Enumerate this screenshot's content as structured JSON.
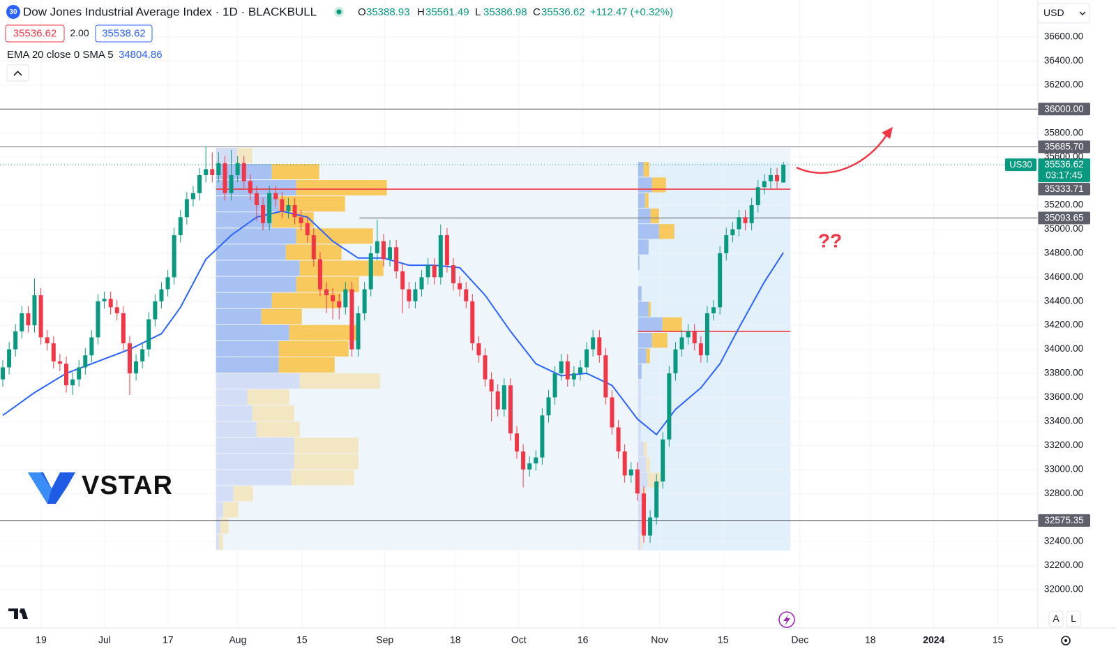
{
  "chart_data": {
    "type": "candlestick",
    "title": "Dow Jones Industrial Average Index · 1D · BLACKBULL",
    "symbol_badge": "30",
    "ohlc_letters": [
      "O",
      "H",
      "L",
      "C"
    ],
    "change": "+112.47 (+0.32%)",
    "spread": "2.00",
    "ask": 35538.62,
    "currency": "USD",
    "scale_buttons": [
      "A",
      "L"
    ],
    "logo": "VSTAR",
    "annotation": "??",
    "up_color": "#089981",
    "down_color": "#f23645",
    "xlim": [
      -0.44,
      163.1
    ],
    "ylim": [
      31680,
      36908
    ],
    "xticks": [
      {
        "value": 6.04,
        "label": "19"
      },
      {
        "value": 16.04,
        "label": "Jul"
      },
      {
        "value": 26.04,
        "label": "17"
      },
      {
        "value": 37.03,
        "label": "Aug"
      },
      {
        "value": 47.14,
        "label": "15"
      },
      {
        "value": 60.2,
        "label": "Sep"
      },
      {
        "value": 71.3,
        "label": "18"
      },
      {
        "value": 81.3,
        "label": "Oct"
      },
      {
        "value": 91.4,
        "label": "16"
      },
      {
        "value": 103.5,
        "label": "Nov"
      },
      {
        "value": 113.5,
        "label": "15"
      },
      {
        "value": 125.6,
        "label": "Dec"
      },
      {
        "value": 136.7,
        "label": "18"
      },
      {
        "value": 146.7,
        "label": "2024",
        "bold": true
      },
      {
        "value": 156.8,
        "label": "15"
      }
    ],
    "yticks": [
      {
        "value": 36600,
        "label": "36600.00"
      },
      {
        "value": 36400,
        "label": "36400.00"
      },
      {
        "value": 36200,
        "label": "36200.00"
      },
      {
        "value": 35800,
        "label": "35800.00"
      },
      {
        "value": 35600,
        "label": "35600.00"
      },
      {
        "value": 35200,
        "label": "35200.00"
      },
      {
        "value": 35000,
        "label": "35000.00"
      },
      {
        "value": 34800,
        "label": "34800.00"
      },
      {
        "value": 34600,
        "label": "34600.00"
      },
      {
        "value": 34400,
        "label": "34400.00"
      },
      {
        "value": 34200,
        "label": "34200.00"
      },
      {
        "value": 34000,
        "label": "34000.00"
      },
      {
        "value": 33800,
        "label": "33800.00"
      },
      {
        "value": 33600,
        "label": "33600.00"
      },
      {
        "value": 33400,
        "label": "33400.00"
      },
      {
        "value": 33200,
        "label": "33200.00"
      },
      {
        "value": 33000,
        "label": "33000.00"
      },
      {
        "value": 32800,
        "label": "32800.00"
      },
      {
        "value": 32400,
        "label": "32400.00"
      },
      {
        "value": 32200,
        "label": "32200.00"
      },
      {
        "value": 32000,
        "label": "32000.00"
      }
    ],
    "grid": true,
    "open": [
      33750,
      33850,
      34000,
      34150,
      34300,
      34200,
      34450,
      34100,
      34050,
      33900,
      33880,
      33700,
      33750,
      33850,
      33950,
      34100,
      34400,
      34420,
      34350,
      34300,
      34050,
      33800,
      33900,
      34000,
      34250,
      34400,
      34500,
      34600,
      34950,
      35100,
      35250,
      35300,
      35450,
      35500,
      35450,
      35550,
      35300,
      35450,
      35550,
      35400,
      35300,
      35200,
      35050,
      35300,
      35250,
      35150,
      35200,
      35100,
      35050,
      34950,
      34750,
      34500,
      34450,
      34400,
      34350,
      34500,
      34000,
      34300,
      34500,
      34800,
      34900,
      34750,
      34850,
      34650,
      34500,
      34400,
      34500,
      34600,
      34700,
      34600,
      34950,
      34700,
      34550,
      34500,
      34400,
      34050,
      33950,
      33750,
      33650,
      33500,
      33700,
      33300,
      33150,
      33000,
      33050,
      33100,
      33450,
      33600,
      33800,
      33900,
      33750,
      33800,
      33850,
      34000,
      34100,
      33950,
      33600,
      33350,
      33150,
      32950,
      33000,
      32800,
      32450,
      32600,
      32900,
      33250,
      33800,
      34000,
      34100,
      34150,
      34050,
      33950,
      34300,
      34350,
      34800,
      34950,
      35000,
      35100,
      35050,
      35200,
      35350,
      35400,
      35450,
      35388.93
    ],
    "high": [
      33910,
      34060,
      34210,
      34360,
      34360,
      34590,
      34510,
      34160,
      34110,
      33960,
      33940,
      33810,
      33910,
      34010,
      34160,
      34460,
      34480,
      34480,
      34410,
      34360,
      34110,
      33960,
      34060,
      34310,
      34460,
      34560,
      34660,
      35010,
      35160,
      35310,
      35360,
      35510,
      35685.7,
      35640,
      35640,
      35610,
      35660,
      35610,
      35610,
      35460,
      35360,
      35260,
      35360,
      35360,
      35310,
      35260,
      35260,
      35160,
      35110,
      35010,
      34810,
      34560,
      34510,
      34460,
      34560,
      34560,
      34360,
      34560,
      34860,
      35080,
      34960,
      34910,
      34910,
      34710,
      34560,
      34560,
      34660,
      34760,
      34760,
      35040,
      35010,
      34760,
      34610,
      34560,
      34460,
      34110,
      34010,
      33810,
      33710,
      33760,
      33760,
      33360,
      33210,
      33110,
      33160,
      33510,
      33660,
      33860,
      33960,
      33960,
      33860,
      33910,
      34060,
      34160,
      34160,
      34010,
      33660,
      33410,
      33210,
      33060,
      33060,
      32860,
      32660,
      32960,
      33310,
      33860,
      34060,
      34160,
      34210,
      34210,
      34110,
      34360,
      34410,
      34860,
      35010,
      35060,
      35160,
      35160,
      35260,
      35410,
      35460,
      35510,
      35510,
      35561.49
    ],
    "low": [
      33690,
      33790,
      33940,
      34090,
      34140,
      34140,
      34040,
      33990,
      33840,
      33820,
      33640,
      33620,
      33690,
      33790,
      33890,
      34040,
      34340,
      34290,
      34240,
      33990,
      33620,
      33740,
      33840,
      33940,
      34190,
      34340,
      34440,
      34540,
      34890,
      35040,
      35190,
      35240,
      35390,
      35390,
      35390,
      35240,
      35240,
      35390,
      35340,
      35240,
      35070,
      34990,
      34990,
      35190,
      35090,
      35090,
      35040,
      34990,
      34890,
      34690,
      34440,
      34300,
      34250,
      34250,
      34290,
      33940,
      33940,
      34240,
      34440,
      34740,
      34690,
      34690,
      34590,
      34300,
      34340,
      34340,
      34440,
      34540,
      34540,
      34540,
      34640,
      34490,
      34440,
      34340,
      33990,
      33890,
      33690,
      33400,
      33440,
      33440,
      33240,
      33090,
      32850,
      32940,
      32990,
      33040,
      33390,
      33540,
      33740,
      33690,
      33690,
      33740,
      33790,
      33940,
      33890,
      33540,
      33290,
      33090,
      32890,
      32890,
      32740,
      32390,
      32390,
      32540,
      32840,
      33190,
      33740,
      33940,
      34040,
      33990,
      33890,
      33890,
      34240,
      34290,
      34740,
      34890,
      34940,
      34990,
      34990,
      35140,
      35290,
      35340,
      35340,
      35386.98
    ],
    "close": [
      33850,
      34000,
      34150,
      34300,
      34200,
      34450,
      34100,
      34050,
      33900,
      33880,
      33700,
      33750,
      33850,
      33950,
      34100,
      34400,
      34420,
      34350,
      34300,
      34050,
      33800,
      33900,
      34000,
      34250,
      34400,
      34500,
      34600,
      34950,
      35100,
      35250,
      35300,
      35450,
      35500,
      35450,
      35550,
      35300,
      35450,
      35550,
      35400,
      35300,
      35200,
      35050,
      35300,
      35250,
      35150,
      35200,
      35100,
      35050,
      34950,
      34750,
      34500,
      34450,
      34400,
      34350,
      34500,
      34000,
      34300,
      34500,
      34800,
      34900,
      34750,
      34850,
      34650,
      34500,
      34400,
      34500,
      34600,
      34700,
      34600,
      34950,
      34700,
      34550,
      34500,
      34400,
      34050,
      33950,
      33750,
      33650,
      33500,
      33700,
      33300,
      33150,
      33000,
      33050,
      33100,
      33450,
      33600,
      33800,
      33900,
      33750,
      33800,
      33850,
      34000,
      34100,
      33950,
      33600,
      33350,
      33150,
      32950,
      33000,
      32800,
      32450,
      32600,
      32900,
      33250,
      33800,
      34000,
      34100,
      34150,
      34050,
      33950,
      34300,
      34350,
      34800,
      34950,
      35000,
      35100,
      35050,
      35200,
      35350,
      35400,
      35450,
      35400,
      35536.62
    ],
    "ema": {
      "name": "EMA 20 close 0 SMA 5",
      "color": "#2962ff",
      "x": [
        0,
        5,
        10,
        15,
        20,
        25,
        28,
        32,
        36,
        40,
        44,
        48,
        52,
        56,
        60,
        64,
        68,
        72,
        76,
        80,
        84,
        88,
        92,
        96,
        100,
        103,
        106,
        110,
        113,
        116,
        120,
        123
      ],
      "values": [
        33450,
        33640,
        33800,
        33900,
        34000,
        34130,
        34350,
        34750,
        34950,
        35100,
        35150,
        35100,
        34900,
        34760,
        34760,
        34700,
        34700,
        34680,
        34450,
        34150,
        33880,
        33780,
        33800,
        33700,
        33420,
        33290,
        33500,
        33680,
        33880,
        34180,
        34560,
        34804.86
      ]
    },
    "current_price": {
      "ticker": "US30",
      "countdown": "03:17:45"
    },
    "levels": [
      {
        "value": 36000,
        "label": "36000.00",
        "color": "#5d606b"
      },
      {
        "value": 35685.7,
        "label": "35685.70",
        "color": "#787b86"
      },
      {
        "value": 35333.71,
        "label": "35333.71",
        "color": "#f23645",
        "from": 33.6,
        "to": 124.1
      },
      {
        "value": 35093.65,
        "label": "35093.65",
        "color": "#787b86",
        "from": 56.2
      },
      {
        "value": 32575.35,
        "label": "32575.35",
        "color": "#5d606b"
      },
      {
        "value": 34150,
        "color": "#f23645",
        "from": 100.1,
        "to": 124.1
      }
    ],
    "profiles": [
      {
        "x_start": 33.6,
        "x_end": 124.1,
        "price_range": [
          32326,
          35677
        ],
        "shade": "#eef6fc",
        "up": [
          4,
          6,
          10,
          25,
          108,
          112,
          112,
          58,
          52,
          45,
          120,
          90,
          90,
          105,
          65,
          80,
          115,
          120,
          100,
          115,
          80,
          90,
          115,
          80,
          30
        ],
        "down": [
          6,
          12,
          22,
          28,
          90,
          92,
          92,
          62,
          60,
          60,
          115,
          80,
          100,
          100,
          58,
          100,
          90,
          120,
          80,
          110,
          60,
          95,
          130,
          68,
          22
        ],
        "value_area": [
          false,
          false,
          false,
          false,
          false,
          false,
          false,
          false,
          false,
          false,
          false,
          true,
          true,
          true,
          true,
          true,
          true,
          true,
          true,
          true,
          true,
          true,
          true,
          true,
          false
        ]
      },
      {
        "x_start": 100.1,
        "x_end": 124.1,
        "price_range": [
          32326,
          35560
        ],
        "shade": "#e2f0fb",
        "up": [
          3,
          5,
          8,
          6,
          14,
          12,
          8,
          4,
          4,
          4,
          4,
          5,
          12,
          20,
          35,
          15,
          5,
          0,
          2,
          15,
          30,
          18,
          10,
          20,
          8
        ],
        "down": [
          2,
          3,
          3,
          6,
          18,
          5,
          5,
          0,
          0,
          0,
          0,
          0,
          5,
          22,
          28,
          3,
          0,
          0,
          0,
          0,
          22,
          12,
          5,
          20,
          8
        ],
        "value_area": [
          false,
          false,
          false,
          false,
          false,
          false,
          false,
          false,
          false,
          false,
          false,
          true,
          true,
          true,
          true,
          true,
          true,
          true,
          true,
          true,
          true,
          true,
          true,
          true,
          true
        ]
      }
    ]
  }
}
